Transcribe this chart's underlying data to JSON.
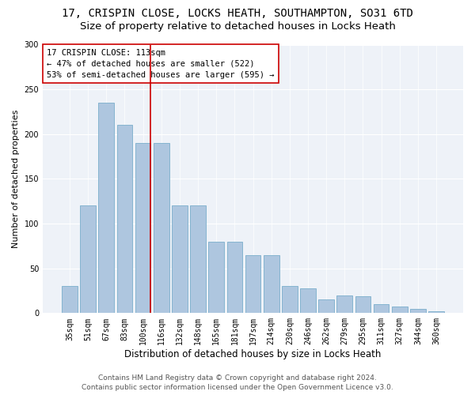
{
  "title_line1": "17, CRISPIN CLOSE, LOCKS HEATH, SOUTHAMPTON, SO31 6TD",
  "title_line2": "Size of property relative to detached houses in Locks Heath",
  "xlabel": "Distribution of detached houses by size in Locks Heath",
  "ylabel": "Number of detached properties",
  "categories": [
    "35sqm",
    "51sqm",
    "67sqm",
    "83sqm",
    "100sqm",
    "116sqm",
    "132sqm",
    "148sqm",
    "165sqm",
    "181sqm",
    "197sqm",
    "214sqm",
    "230sqm",
    "246sqm",
    "262sqm",
    "279sqm",
    "295sqm",
    "311sqm",
    "327sqm",
    "344sqm",
    "360sqm"
  ],
  "values": [
    30,
    120,
    235,
    210,
    190,
    190,
    120,
    120,
    80,
    80,
    65,
    65,
    30,
    28,
    15,
    20,
    19,
    10,
    7,
    5,
    2
  ],
  "bar_color": "#aec6df",
  "bar_edge_color": "#7aaecb",
  "vline_x": 4.0,
  "vline_color": "#cc0000",
  "annotation_text": "17 CRISPIN CLOSE: 113sqm\n← 47% of detached houses are smaller (522)\n53% of semi-detached houses are larger (595) →",
  "annotation_box_color": "white",
  "annotation_box_edge": "#cc0000",
  "ylim": [
    0,
    300
  ],
  "yticks": [
    0,
    50,
    100,
    150,
    200,
    250,
    300
  ],
  "background_color": "#eef2f8",
  "footer_line1": "Contains HM Land Registry data © Crown copyright and database right 2024.",
  "footer_line2": "Contains public sector information licensed under the Open Government Licence v3.0.",
  "title_fontsize": 10,
  "subtitle_fontsize": 9.5,
  "xlabel_fontsize": 8.5,
  "ylabel_fontsize": 8,
  "tick_fontsize": 7,
  "annotation_fontsize": 7.5,
  "footer_fontsize": 6.5
}
